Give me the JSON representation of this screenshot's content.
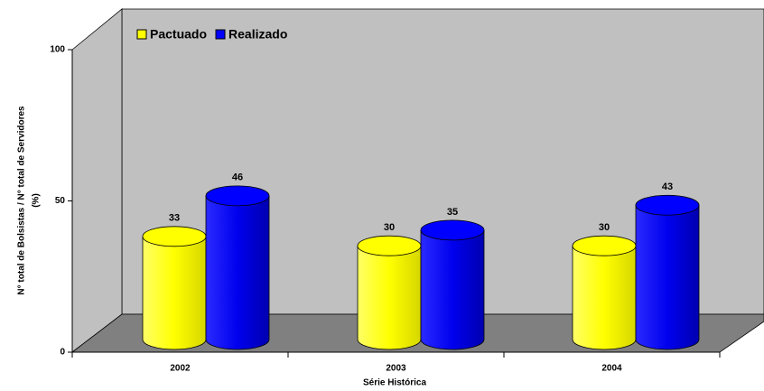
{
  "chart_data": {
    "type": "bar",
    "categories": [
      "2002",
      "2003",
      "2004"
    ],
    "series": [
      {
        "name": "Pactuado",
        "color": "#ffff00",
        "values": [
          33,
          30,
          30
        ]
      },
      {
        "name": "Realizado",
        "color": "#0000ff",
        "values": [
          46,
          35,
          43
        ]
      }
    ],
    "ylim": [
      0,
      100
    ],
    "yticks": [
      0,
      50,
      100
    ],
    "xlabel": "Série Histórica",
    "ylabel": [
      "N° total de Bolsistas / N° total de Servidores",
      "(%)"
    ],
    "legend": "top-left"
  }
}
